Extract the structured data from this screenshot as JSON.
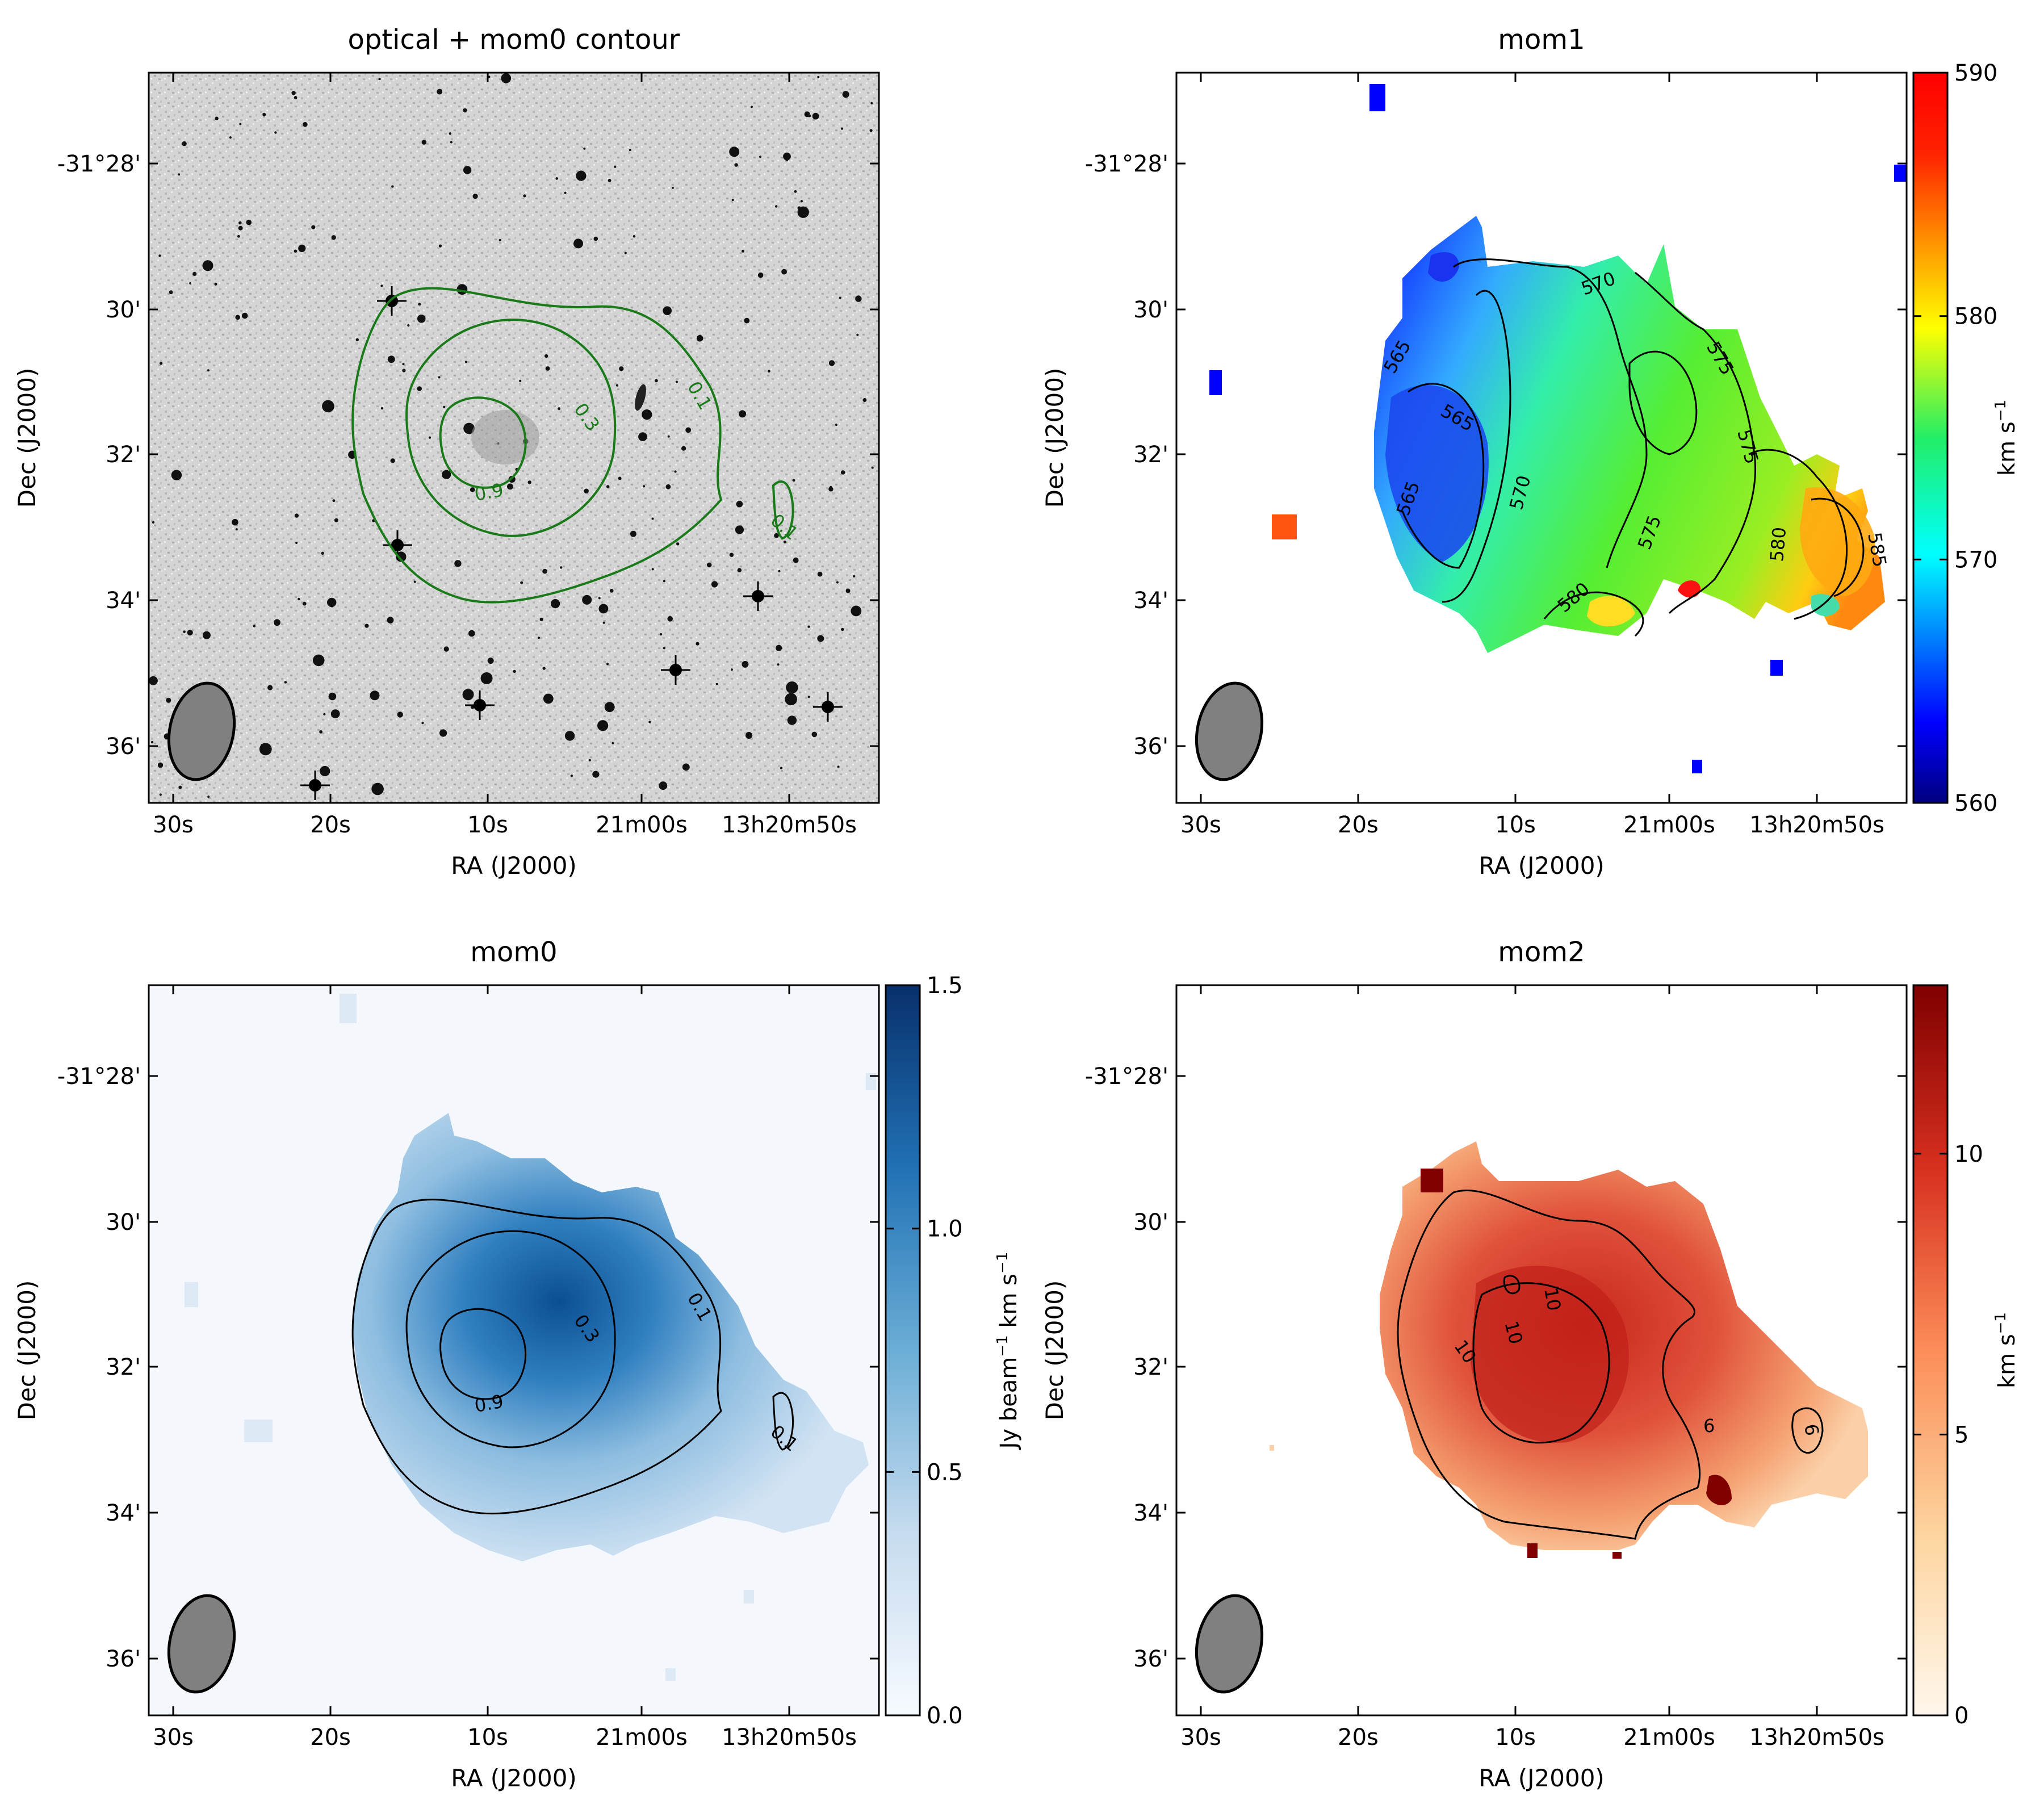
{
  "chart_data": [
    {
      "type": "heatmap",
      "title": "optical + mom0 contour",
      "xlabel": "RA (J2000)",
      "ylabel": "Dec (J2000)",
      "x_ticks": [
        "30s",
        "20s",
        "10s",
        "21m00s",
        "13h20m50s"
      ],
      "y_ticks": [
        "-31°28'",
        "30'",
        "32'",
        "34'",
        "36'"
      ],
      "contour_levels": [
        0.1,
        0.3,
        0.9
      ],
      "contour_labels": [
        "0.1",
        "0.3",
        "0.9",
        "0.1"
      ],
      "contour_color": "#1a7a1a",
      "image": "optical grayscale",
      "colorbar": null
    },
    {
      "type": "heatmap",
      "title": "mom1",
      "xlabel": "RA (J2000)",
      "ylabel": "Dec (J2000)",
      "x_ticks": [
        "30s",
        "20s",
        "10s",
        "21m00s",
        "13h20m50s"
      ],
      "y_ticks": [
        "-31°28'",
        "30'",
        "32'",
        "34'",
        "36'"
      ],
      "colormap": "jet",
      "colorbar": {
        "min": 560,
        "max": 590,
        "ticks": [
          "590",
          "580",
          "570",
          "560"
        ],
        "label": "km s",
        "label_exp": "−1"
      },
      "contour_levels": [
        565,
        570,
        575,
        580,
        585
      ],
      "contour_labels": [
        "570",
        "575",
        "565",
        "565",
        "565",
        "570",
        "575",
        "575",
        "580",
        "580",
        "585"
      ]
    },
    {
      "type": "heatmap",
      "title": "mom0",
      "xlabel": "RA (J2000)",
      "ylabel": "Dec (J2000)",
      "x_ticks": [
        "30s",
        "20s",
        "10s",
        "21m00s",
        "13h20m50s"
      ],
      "y_ticks": [
        "-31°28'",
        "30'",
        "32'",
        "34'",
        "36'"
      ],
      "colormap": "Blues",
      "colorbar": {
        "min": 0.0,
        "max": 1.5,
        "ticks": [
          "1.5",
          "1.0",
          "0.5",
          "0.0"
        ],
        "label_a": "Jy beam",
        "label_b": " km s",
        "label_exp": "−1"
      },
      "contour_levels": [
        0.1,
        0.3,
        0.9
      ],
      "contour_labels": [
        "0.1",
        "0.3",
        "0.9",
        "0.1"
      ]
    },
    {
      "type": "heatmap",
      "title": "mom2",
      "xlabel": "RA (J2000)",
      "ylabel": "Dec (J2000)",
      "x_ticks": [
        "30s",
        "20s",
        "10s",
        "21m00s",
        "13h20m50s"
      ],
      "y_ticks": [
        "-31°28'",
        "30'",
        "32'",
        "34'",
        "36'"
      ],
      "colormap": "OrRd",
      "colorbar": {
        "min": 0,
        "max": 13,
        "ticks": [
          "10",
          "5",
          "0"
        ],
        "label": "km s",
        "label_exp": "−1"
      },
      "contour_levels": [
        6,
        10
      ],
      "contour_labels": [
        "10",
        "10",
        "10",
        "6",
        "6"
      ]
    }
  ]
}
